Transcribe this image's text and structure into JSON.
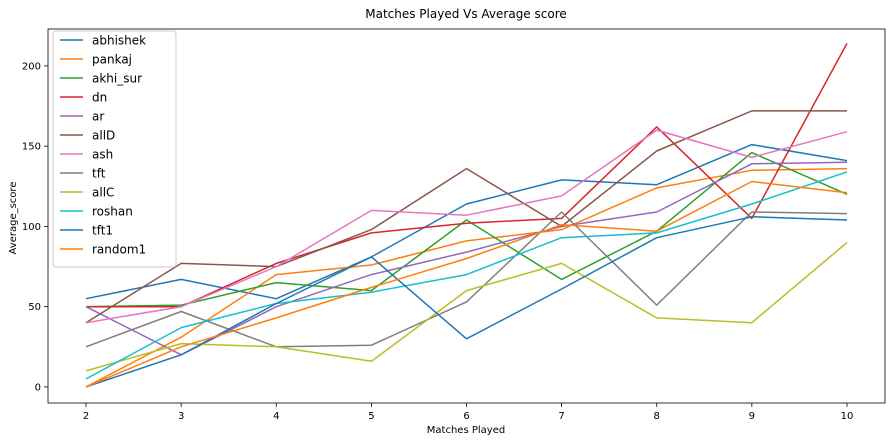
{
  "chart_data": {
    "type": "line",
    "title": "Matches Played Vs Average score",
    "xlabel": "Matches Played",
    "ylabel": "Average_score",
    "x": [
      2,
      3,
      4,
      5,
      6,
      7,
      8,
      9,
      10
    ],
    "xlim": [
      1.6,
      10.4
    ],
    "ylim": [
      -10,
      223
    ],
    "yticks": [
      0,
      50,
      100,
      150,
      200
    ],
    "grid": false,
    "legend_position": "top-left",
    "series": [
      {
        "name": "abhishek",
        "color": "#1f77b4",
        "values": [
          55,
          67,
          55,
          81,
          114,
          129,
          126,
          151,
          141
        ]
      },
      {
        "name": "pankaj",
        "color": "#ff7f0e",
        "values": [
          0,
          31,
          70,
          76,
          91,
          98,
          124,
          135,
          136
        ]
      },
      {
        "name": "akhi_sur",
        "color": "#2ca02c",
        "values": [
          50,
          51,
          65,
          60,
          104,
          67,
          97,
          146,
          120
        ]
      },
      {
        "name": "dn",
        "color": "#d62728",
        "values": [
          50,
          50,
          77,
          96,
          102,
          105,
          162,
          105,
          214
        ]
      },
      {
        "name": "ar",
        "color": "#9467bd",
        "values": [
          50,
          20,
          50,
          70,
          84,
          100,
          109,
          139,
          140
        ]
      },
      {
        "name": "allD",
        "color": "#8c564b",
        "values": [
          40,
          77,
          75,
          98,
          136,
          100,
          147,
          172,
          172
        ]
      },
      {
        "name": "ash",
        "color": "#e377c2",
        "values": [
          40,
          50,
          75,
          110,
          107,
          119,
          160,
          143,
          159
        ]
      },
      {
        "name": "tft",
        "color": "#7f7f7f",
        "values": [
          25,
          47,
          25,
          26,
          53,
          109,
          51,
          109,
          108
        ]
      },
      {
        "name": "allC",
        "color": "#bcbd22",
        "values": [
          10,
          27,
          25,
          16,
          60,
          77,
          43,
          40,
          90
        ]
      },
      {
        "name": "roshan",
        "color": "#17becf",
        "values": [
          5,
          37,
          52,
          59,
          70,
          93,
          96,
          114,
          134
        ]
      },
      {
        "name": "tft1",
        "color": "#1f77b4",
        "values": [
          0,
          20,
          52,
          81,
          30,
          61,
          93,
          106,
          104
        ]
      },
      {
        "name": "random1",
        "color": "#ff7f0e",
        "values": [
          0,
          25,
          43,
          62,
          80,
          101,
          97,
          128,
          121
        ]
      }
    ]
  }
}
